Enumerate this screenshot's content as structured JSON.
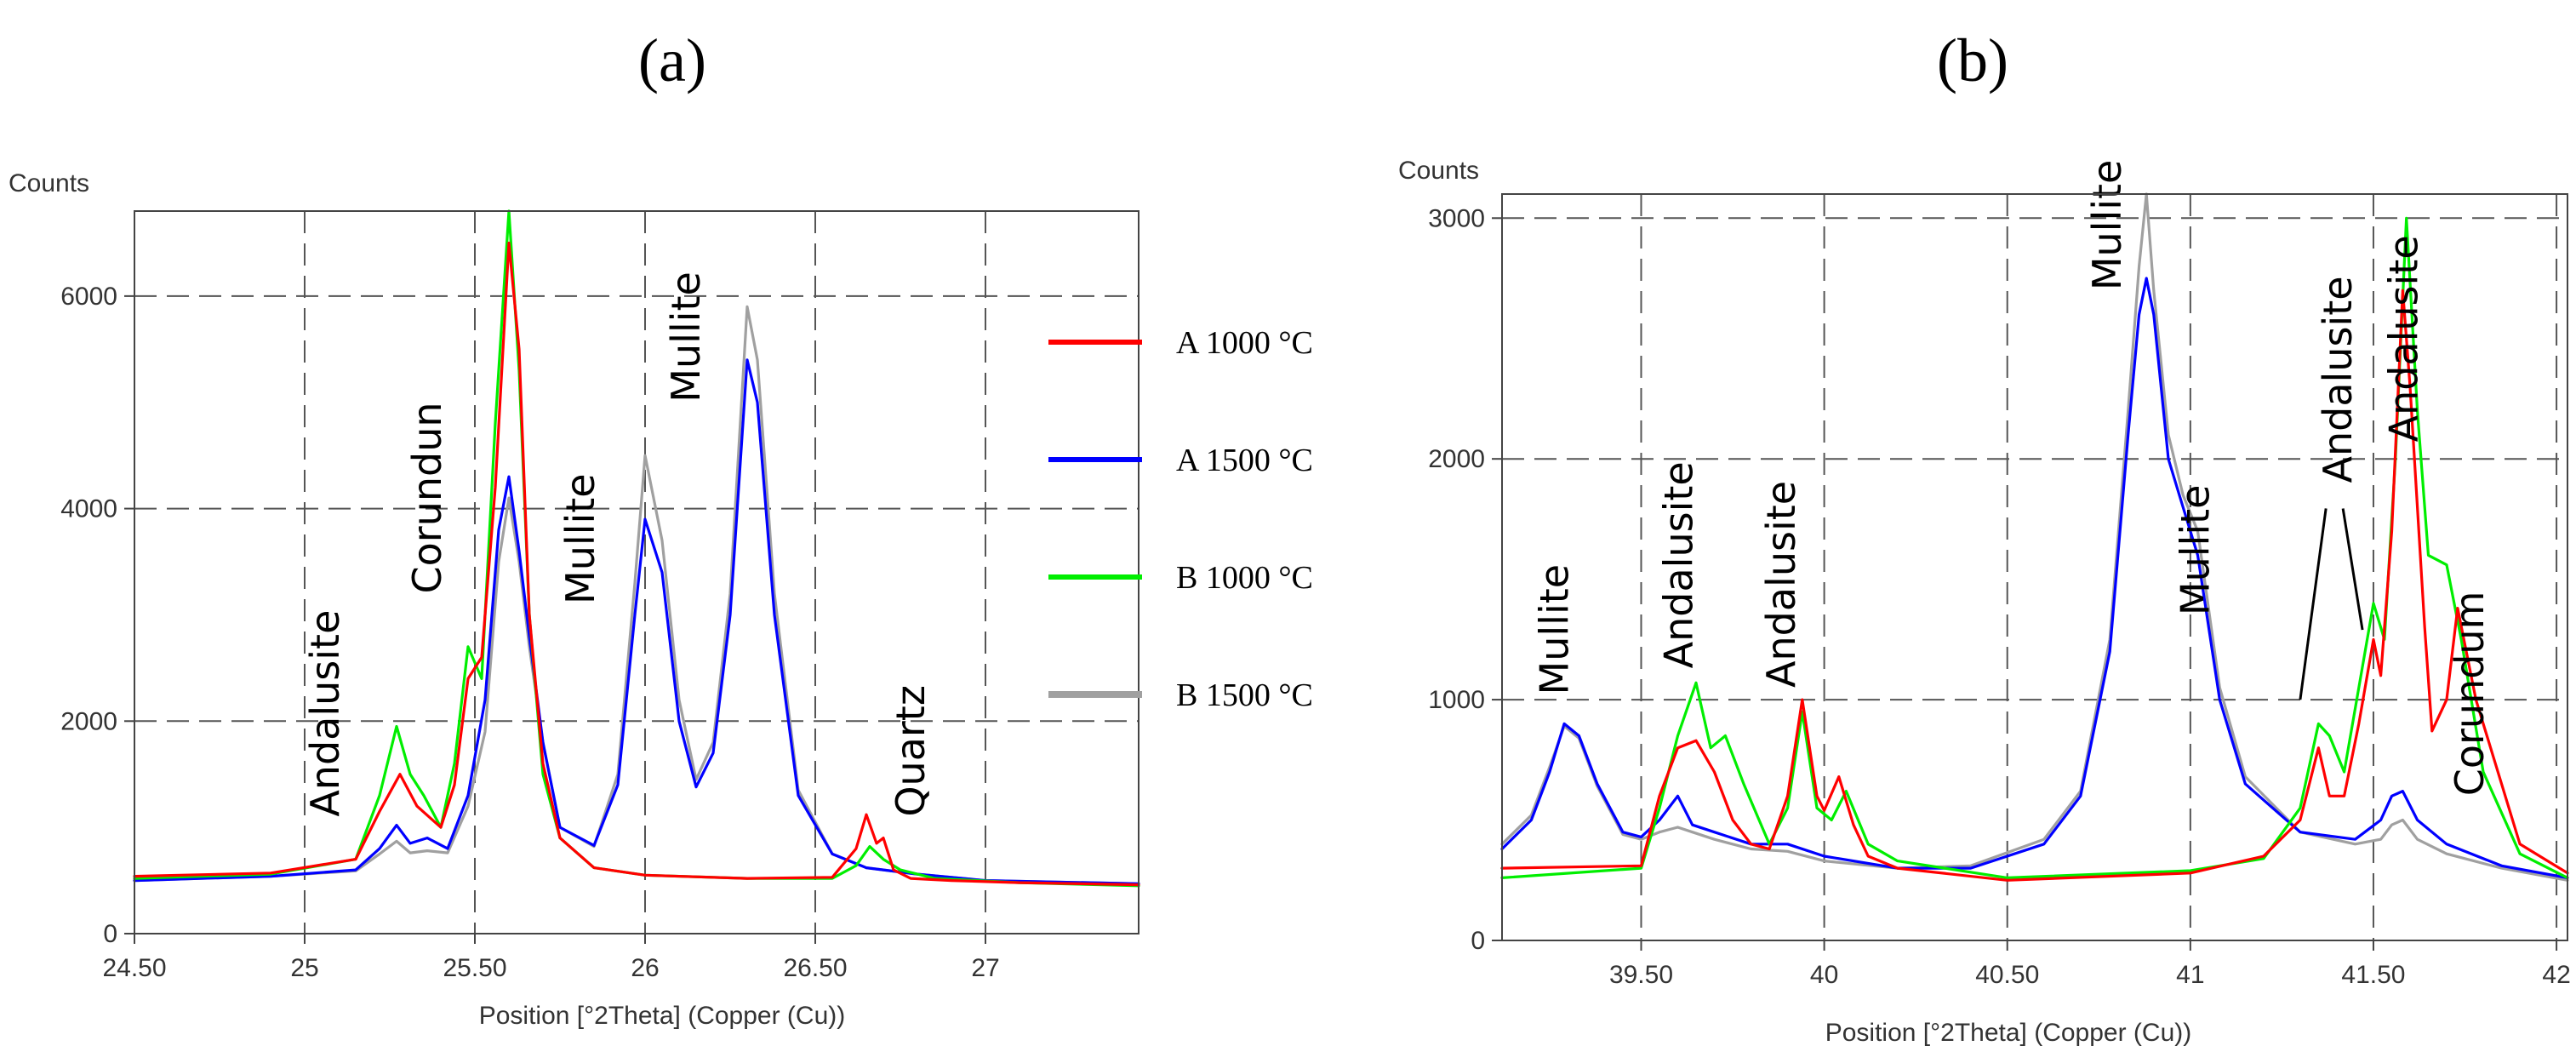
{
  "chart_data": [
    {
      "type": "line",
      "panel_label": "(a)",
      "ylabel": "Counts",
      "xlabel": "Position [°2Theta] (Copper (Cu))",
      "xlim": [
        24.5,
        27.45
      ],
      "ylim": [
        0,
        6800
      ],
      "x_ticks": [
        24.5,
        25,
        25.5,
        26,
        26.5,
        27
      ],
      "x_tick_labels": [
        "24.50",
        "25",
        "25.50",
        "26",
        "26.50",
        "27"
      ],
      "y_ticks": [
        0,
        2000,
        4000,
        6000
      ],
      "y_tick_labels": [
        "0",
        "2000",
        "4000",
        "6000"
      ],
      "grid": true,
      "legend_position": "right",
      "legend": [
        {
          "name": "A 1000 °C",
          "color": "#ff0000"
        },
        {
          "name": "A 1500 °C",
          "color": "#0000ff"
        },
        {
          "name": "B 1000 °C",
          "color": "#00ee00"
        },
        {
          "name": "B 1500 °C",
          "color": "#a0a0a0"
        }
      ],
      "annotations": [
        {
          "text": "Andalusite",
          "x": 25.1,
          "y": 1100
        },
        {
          "text": "Corundun",
          "x": 25.4,
          "y": 3200
        },
        {
          "text": "Mullite",
          "x": 25.85,
          "y": 3100
        },
        {
          "text": "Mullite",
          "x": 26.16,
          "y": 5000
        },
        {
          "text": "Quartz",
          "x": 26.82,
          "y": 1100
        }
      ],
      "series": [
        {
          "name": "A 1000 °C",
          "color": "#ff0000",
          "x": [
            24.5,
            24.9,
            25.15,
            25.22,
            25.28,
            25.33,
            25.4,
            25.44,
            25.48,
            25.52,
            25.56,
            25.6,
            25.63,
            25.66,
            25.7,
            25.75,
            25.85,
            26.0,
            26.3,
            26.55,
            26.62,
            26.65,
            26.68,
            26.7,
            26.73,
            26.78,
            26.9,
            27.1,
            27.45
          ],
          "y": [
            540,
            570,
            700,
            1150,
            1500,
            1200,
            1000,
            1400,
            2400,
            2600,
            4200,
            6500,
            5500,
            3000,
            1600,
            900,
            620,
            550,
            520,
            530,
            800,
            1120,
            850,
            900,
            600,
            520,
            500,
            480,
            460
          ]
        },
        {
          "name": "A 1500 °C",
          "color": "#0000ff",
          "x": [
            24.5,
            24.9,
            25.15,
            25.22,
            25.27,
            25.31,
            25.36,
            25.42,
            25.48,
            25.53,
            25.57,
            25.6,
            25.63,
            25.66,
            25.7,
            25.75,
            25.85,
            25.92,
            25.97,
            26.0,
            26.05,
            26.1,
            26.15,
            26.2,
            26.25,
            26.3,
            26.33,
            26.38,
            26.45,
            26.55,
            26.65,
            26.7,
            26.8,
            27.0,
            27.45
          ],
          "y": [
            500,
            540,
            600,
            800,
            1020,
            850,
            900,
            800,
            1300,
            2200,
            3800,
            4300,
            3600,
            2800,
            1800,
            1000,
            830,
            1400,
            3000,
            3900,
            3400,
            2000,
            1380,
            1700,
            3000,
            5400,
            5000,
            3000,
            1300,
            750,
            620,
            600,
            560,
            500,
            470
          ]
        },
        {
          "name": "B 1000 °C",
          "color": "#00ee00",
          "x": [
            24.5,
            24.9,
            25.15,
            25.22,
            25.27,
            25.31,
            25.35,
            25.4,
            25.44,
            25.48,
            25.52,
            25.56,
            25.6,
            25.63,
            25.66,
            25.7,
            25.75,
            25.85,
            26.0,
            26.3,
            26.55,
            26.62,
            26.66,
            26.7,
            26.75,
            26.85,
            27.1,
            27.45
          ],
          "y": [
            520,
            560,
            700,
            1300,
            1950,
            1500,
            1300,
            1000,
            1600,
            2700,
            2400,
            4800,
            6800,
            5300,
            3000,
            1500,
            900,
            620,
            550,
            520,
            520,
            640,
            820,
            700,
            600,
            520,
            480,
            450
          ]
        },
        {
          "name": "B 1500 °C",
          "color": "#a0a0a0",
          "x": [
            24.5,
            24.9,
            25.15,
            25.22,
            25.27,
            25.31,
            25.36,
            25.42,
            25.48,
            25.53,
            25.57,
            25.6,
            25.63,
            25.66,
            25.7,
            25.75,
            25.85,
            25.92,
            25.97,
            26.0,
            26.05,
            26.1,
            26.15,
            26.2,
            26.25,
            26.3,
            26.33,
            26.38,
            26.45,
            26.55,
            26.65,
            26.7,
            26.8,
            27.0,
            27.45
          ],
          "y": [
            500,
            540,
            590,
            750,
            870,
            760,
            780,
            760,
            1200,
            1900,
            3500,
            4100,
            3500,
            2700,
            1800,
            1000,
            820,
            1500,
            3300,
            4500,
            3700,
            2200,
            1450,
            1800,
            3200,
            5900,
            5400,
            3200,
            1350,
            750,
            620,
            600,
            560,
            500,
            470
          ]
        }
      ]
    },
    {
      "type": "line",
      "panel_label": "(b)",
      "ylabel": "Counts",
      "xlabel": "Position [°2Theta] (Copper (Cu))",
      "xlim": [
        39.12,
        42.03
      ],
      "ylim": [
        0,
        3100
      ],
      "x_ticks": [
        39.5,
        40,
        40.5,
        41,
        41.5,
        42
      ],
      "x_tick_labels": [
        "39.50",
        "40",
        "40.50",
        "41",
        "41.50",
        "42"
      ],
      "y_ticks": [
        0,
        1000,
        2000,
        3000
      ],
      "y_tick_labels": [
        "0",
        "1000",
        "2000",
        "3000"
      ],
      "grid": true,
      "legend_position": "none",
      "annotations": [
        {
          "text": "Mullite",
          "x": 39.3,
          "y": 1020
        },
        {
          "text": "Andalusite",
          "x": 39.64,
          "y": 1130
        },
        {
          "text": "Andalusite",
          "x": 39.92,
          "y": 1050
        },
        {
          "text": "Mullite",
          "x": 40.81,
          "y": 2700
        },
        {
          "text": "Mullite",
          "x": 41.05,
          "y": 1350
        },
        {
          "text": "Andalusite",
          "x": 41.44,
          "y": 1900
        },
        {
          "text": "Andalusite",
          "x": 41.62,
          "y": 2070
        },
        {
          "text": "Corundum",
          "x": 41.8,
          "y": 600
        }
      ],
      "series": [
        {
          "name": "A 1000 °C",
          "color": "#ff0000",
          "x": [
            39.12,
            39.5,
            39.55,
            39.6,
            39.65,
            39.7,
            39.75,
            39.8,
            39.85,
            39.9,
            39.94,
            39.98,
            40.0,
            40.04,
            40.08,
            40.12,
            40.2,
            40.5,
            41.0,
            41.2,
            41.3,
            41.35,
            41.38,
            41.42,
            41.46,
            41.5,
            41.52,
            41.55,
            41.58,
            41.6,
            41.64,
            41.66,
            41.7,
            41.73,
            41.78,
            41.9,
            42.03
          ],
          "y": [
            300,
            310,
            600,
            800,
            830,
            700,
            500,
            400,
            380,
            600,
            1000,
            600,
            540,
            680,
            480,
            350,
            300,
            250,
            280,
            350,
            500,
            800,
            600,
            600,
            900,
            1250,
            1100,
            1700,
            2700,
            2300,
            1300,
            870,
            1000,
            1380,
            1000,
            400,
            280
          ]
        },
        {
          "name": "A 1500 °C",
          "color": "#0000ff",
          "x": [
            39.12,
            39.2,
            39.25,
            39.29,
            39.33,
            39.38,
            39.45,
            39.5,
            39.55,
            39.6,
            39.64,
            39.7,
            39.8,
            39.9,
            40.0,
            40.2,
            40.4,
            40.6,
            40.7,
            40.78,
            40.83,
            40.86,
            40.88,
            40.9,
            40.94,
            40.98,
            41.02,
            41.08,
            41.15,
            41.3,
            41.45,
            41.52,
            41.55,
            41.58,
            41.62,
            41.7,
            41.85,
            42.03
          ],
          "y": [
            380,
            500,
            700,
            900,
            850,
            650,
            450,
            430,
            500,
            600,
            480,
            450,
            400,
            400,
            350,
            300,
            300,
            400,
            600,
            1200,
            2100,
            2600,
            2750,
            2600,
            2000,
            1800,
            1600,
            1000,
            650,
            450,
            420,
            500,
            600,
            620,
            500,
            400,
            310,
            260
          ]
        },
        {
          "name": "B 1000 °C",
          "color": "#00ee00",
          "x": [
            39.12,
            39.5,
            39.55,
            39.6,
            39.65,
            39.69,
            39.73,
            39.78,
            39.85,
            39.9,
            39.94,
            39.98,
            40.02,
            40.06,
            40.12,
            40.2,
            40.5,
            41.0,
            41.2,
            41.3,
            41.35,
            41.38,
            41.42,
            41.46,
            41.5,
            41.53,
            41.56,
            41.59,
            41.62,
            41.65,
            41.7,
            41.74,
            41.8,
            41.9,
            42.03
          ],
          "y": [
            260,
            300,
            550,
            850,
            1070,
            800,
            850,
            650,
            400,
            550,
            950,
            550,
            500,
            620,
            400,
            330,
            260,
            290,
            340,
            550,
            900,
            850,
            700,
            1050,
            1400,
            1250,
            2000,
            3000,
            2200,
            1600,
            1560,
            1250,
            700,
            360,
            260
          ]
        },
        {
          "name": "B 1500 °C",
          "color": "#a0a0a0",
          "x": [
            39.12,
            39.2,
            39.25,
            39.29,
            39.33,
            39.38,
            39.45,
            39.5,
            39.55,
            39.6,
            39.64,
            39.7,
            39.8,
            39.9,
            40.0,
            40.2,
            40.4,
            40.6,
            40.7,
            40.78,
            40.83,
            40.86,
            40.88,
            40.9,
            40.94,
            40.98,
            41.02,
            41.08,
            41.15,
            41.3,
            41.45,
            41.52,
            41.55,
            41.58,
            41.62,
            41.7,
            41.85,
            42.03
          ],
          "y": [
            400,
            520,
            720,
            890,
            840,
            640,
            440,
            420,
            450,
            470,
            450,
            420,
            380,
            370,
            330,
            300,
            310,
            420,
            620,
            1250,
            2200,
            2800,
            3100,
            2700,
            2100,
            1850,
            1700,
            1050,
            680,
            450,
            400,
            420,
            480,
            500,
            420,
            360,
            300,
            250
          ]
        }
      ]
    }
  ]
}
